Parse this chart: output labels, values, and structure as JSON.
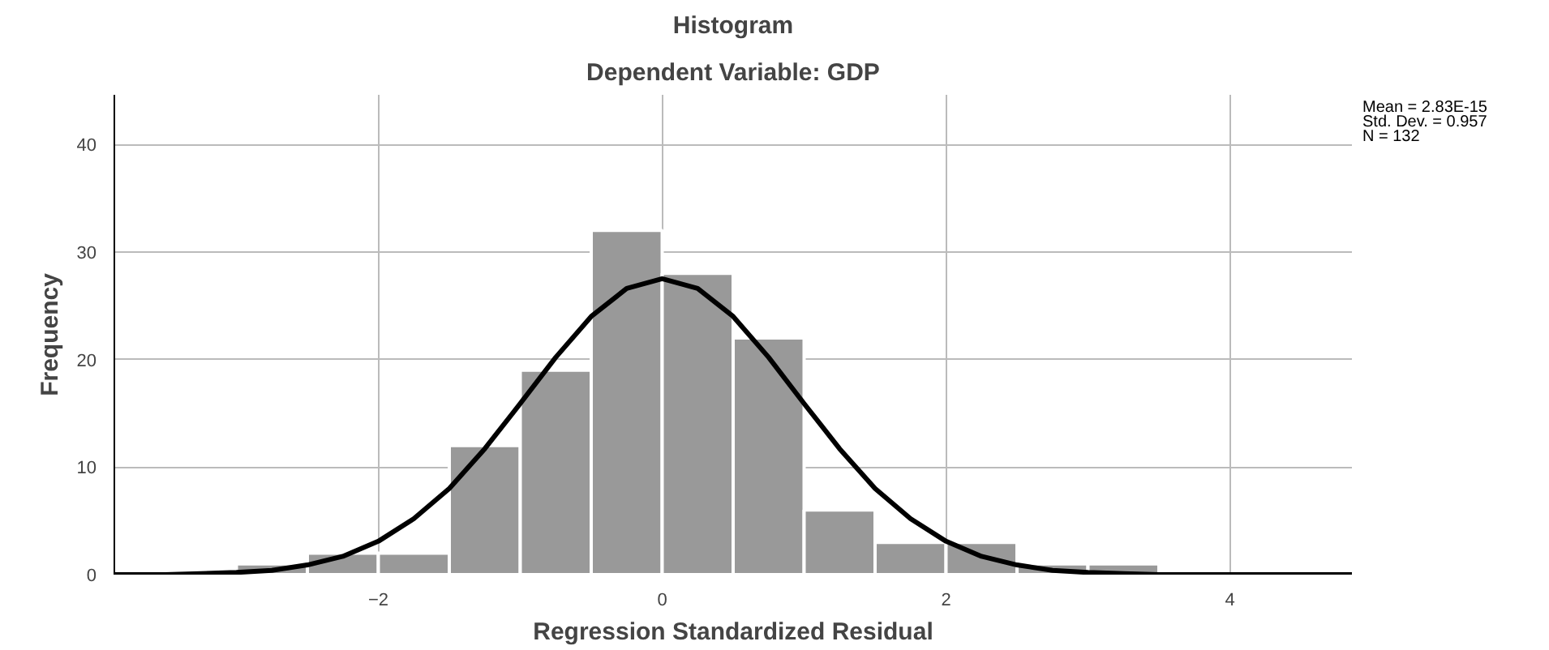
{
  "chart_data": {
    "type": "histogram",
    "title": "Histogram",
    "subtitle": "Dependent Variable: GDP",
    "xlabel": "Regression Standardized Residual",
    "ylabel": "Frequency",
    "bins": [
      -3,
      -2.5,
      -2,
      -1.5,
      -1,
      -0.5,
      0,
      0.5,
      1,
      1.5,
      2,
      2.5,
      3,
      3.5
    ],
    "values": [
      1,
      2,
      2,
      12,
      19,
      32,
      28,
      22,
      6,
      3,
      3,
      1,
      1
    ],
    "color": "#999999",
    "series": [
      {
        "type": "line",
        "color": "#000000",
        "x": [
          -3.86,
          -3.5,
          -3.25,
          -3,
          -2.75,
          -2.5,
          -2.25,
          -2,
          -1.75,
          -1.5,
          -1.25,
          -1,
          -0.75,
          -0.5,
          -0.25,
          0,
          0.25,
          0.5,
          0.75,
          1,
          1.25,
          1.5,
          1.75,
          2,
          2.25,
          2.5,
          2.75,
          3,
          3.25,
          3.5,
          4,
          4.86
        ],
        "values": [
          0,
          0,
          0.1,
          0.2,
          0.4,
          0.9,
          1.7,
          3.1,
          5.2,
          8,
          11.7,
          15.9,
          20.2,
          24,
          26.6,
          27.5,
          26.6,
          24,
          20.2,
          15.9,
          11.7,
          8,
          5.2,
          3.1,
          1.7,
          0.9,
          0.4,
          0.2,
          0.1,
          0,
          0,
          0
        ]
      }
    ],
    "xlim": [
      -3.86,
      4.86
    ],
    "ylim": [
      0,
      44.6
    ],
    "xticks": [
      -2,
      0,
      2,
      4
    ],
    "yticks": [
      0,
      10,
      20,
      30,
      40
    ],
    "grid": true,
    "annotations": [
      "Mean = 2.83E-15",
      "Std. Dev. = 0.957",
      "N = 132"
    ]
  }
}
